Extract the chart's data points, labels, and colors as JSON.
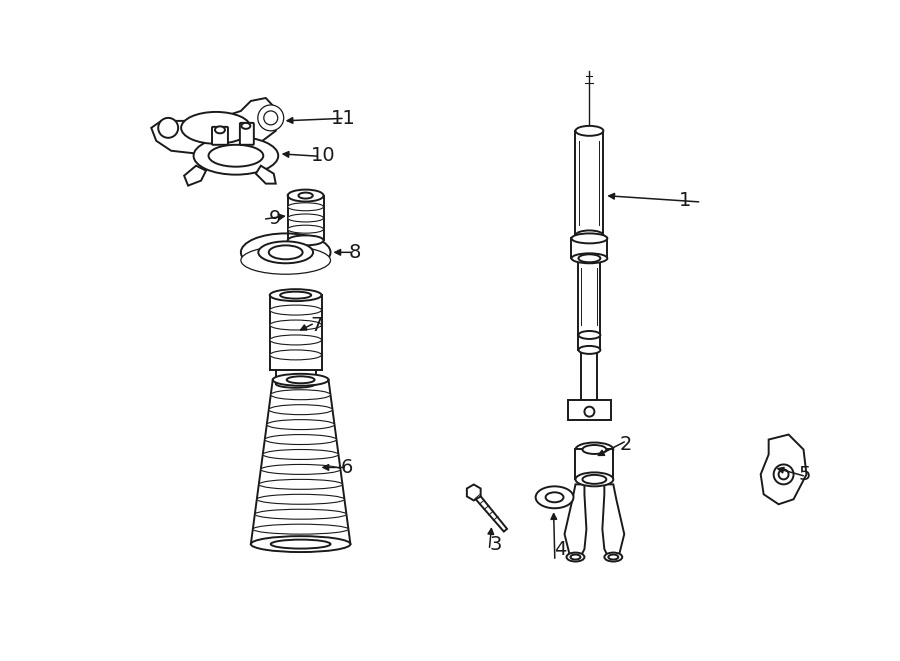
{
  "bg_color": "#ffffff",
  "line_color": "#1a1a1a",
  "fig_width": 9.0,
  "fig_height": 6.61,
  "dpi": 100,
  "label_fontsize": 14
}
